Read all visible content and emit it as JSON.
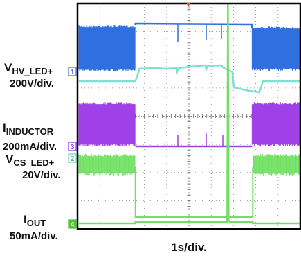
{
  "chart_data": {
    "type": "line",
    "title": "",
    "xlabel": "1s/div.",
    "x_divisions": 10,
    "y_divisions": 8,
    "grid": true,
    "channels": [
      {
        "id": "1",
        "signal": "V",
        "subscript": "HV_LED+",
        "scale": "200V/div.",
        "color": "#2f6fe0",
        "marker_color": "#5b6fe8",
        "trace_color": "#7de0d0"
      },
      {
        "id": "3",
        "signal": "I",
        "subscript": "INDUCTOR",
        "scale": "200mA/div.",
        "color": "#a040e8",
        "marker_color": "#a040e8",
        "trace_color": "#a040e8"
      },
      {
        "id": "2",
        "signal": "V",
        "subscript": "CS_LED+",
        "scale": "20V/div.",
        "color": "#6fe060",
        "marker_color": "#6fd8c8",
        "trace_color": "#6fe060"
      },
      {
        "id": "4",
        "signal": "I",
        "subscript": "OUT",
        "scale": "50mA/div.",
        "color": "#6fe060",
        "marker_color": "#56c038",
        "trace_color": "#6fe060"
      }
    ],
    "events_div": {
      "fault_start": 2.6,
      "fault_end": 6.75
    }
  }
}
